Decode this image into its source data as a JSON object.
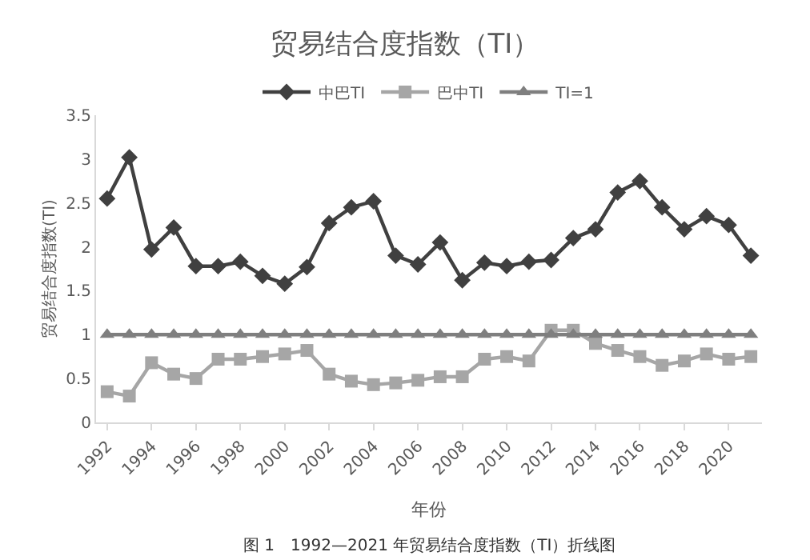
{
  "chart_data": {
    "type": "line",
    "title": "贸易结合度指数（TI）",
    "xlabel": "年份",
    "ylabel": "贸易结合度指数(TI)",
    "categories": [
      "1992",
      null,
      "1994",
      null,
      "1996",
      null,
      "1998",
      null,
      "2000",
      null,
      "2002",
      null,
      "2004",
      null,
      "2006",
      null,
      "2008",
      null,
      "2010",
      null,
      "2012",
      null,
      "2014",
      null,
      "2016",
      null,
      "2018",
      null,
      "2020",
      null
    ],
    "series": [
      {
        "name": "中巴TI",
        "color": "#404040",
        "marker": "diamond",
        "values": [
          2.55,
          3.02,
          1.97,
          2.22,
          1.78,
          1.78,
          1.83,
          1.67,
          1.58,
          1.77,
          2.27,
          2.45,
          2.52,
          1.9,
          1.8,
          2.05,
          1.62,
          1.82,
          1.78,
          1.83,
          1.85,
          2.1,
          2.2,
          2.62,
          2.75,
          2.45,
          2.2,
          2.35,
          2.25,
          1.9
        ]
      },
      {
        "name": "巴中TI",
        "color": "#a6a6a6",
        "marker": "square",
        "values": [
          0.35,
          0.3,
          0.68,
          0.55,
          0.5,
          0.72,
          0.72,
          0.75,
          0.78,
          0.82,
          0.55,
          0.47,
          0.43,
          0.45,
          0.48,
          0.52,
          0.52,
          0.72,
          0.75,
          0.7,
          1.05,
          1.05,
          0.9,
          0.82,
          0.75,
          0.65,
          0.7,
          0.78,
          0.72,
          0.75
        ]
      },
      {
        "name": "TI=1",
        "color": "#7f7f7f",
        "marker": "triangle",
        "values": [
          1,
          1,
          1,
          1,
          1,
          1,
          1,
          1,
          1,
          1,
          1,
          1,
          1,
          1,
          1,
          1,
          1,
          1,
          1,
          1,
          1,
          1,
          1,
          1,
          1,
          1,
          1,
          1,
          1,
          1
        ]
      }
    ],
    "ylim": [
      0,
      3.5
    ],
    "yticks": [
      0,
      0.5,
      1,
      1.5,
      2,
      2.5,
      3,
      3.5
    ],
    "legend": "top",
    "annotations": [
      "图 1　1992—2021 年贸易结合度指数（TI）折线图"
    ]
  }
}
